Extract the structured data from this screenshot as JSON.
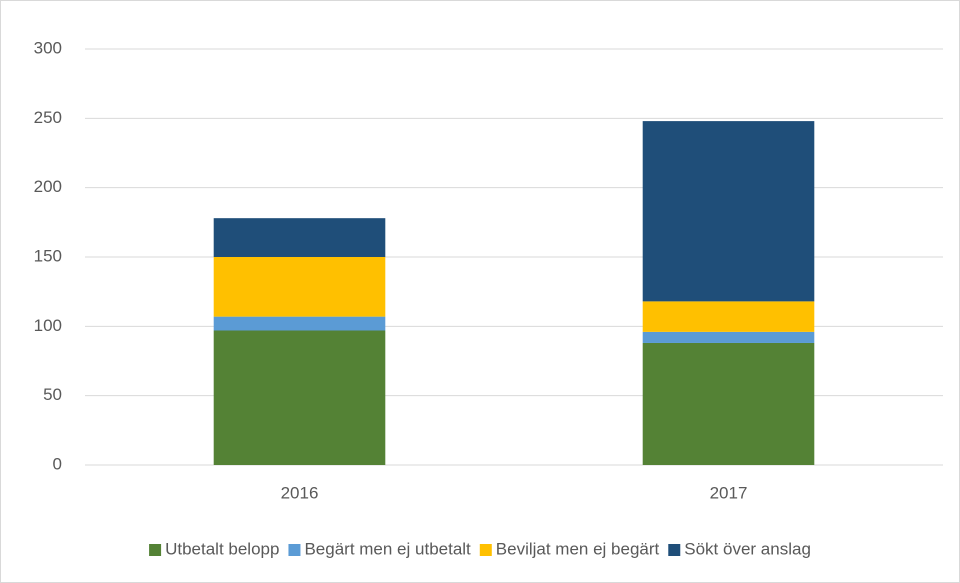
{
  "chart_data": {
    "type": "stacked_bar",
    "categories": [
      "2016",
      "2017"
    ],
    "series": [
      {
        "name": "Utbetalt belopp",
        "color": "#548235",
        "values": [
          97,
          88
        ]
      },
      {
        "name": "Begärt men ej utbetalt",
        "color": "#5b9bd5",
        "values": [
          10,
          8
        ]
      },
      {
        "name": "Beviljat men ej begärt",
        "color": "#ffc000",
        "values": [
          43,
          22
        ]
      },
      {
        "name": "Sökt över anslag",
        "color": "#1f4e79",
        "values": [
          28,
          130
        ]
      }
    ],
    "ylim": [
      0,
      300
    ],
    "yticks": [
      0,
      50,
      100,
      150,
      200,
      250,
      300
    ],
    "grid": true,
    "legend": "bottom"
  }
}
